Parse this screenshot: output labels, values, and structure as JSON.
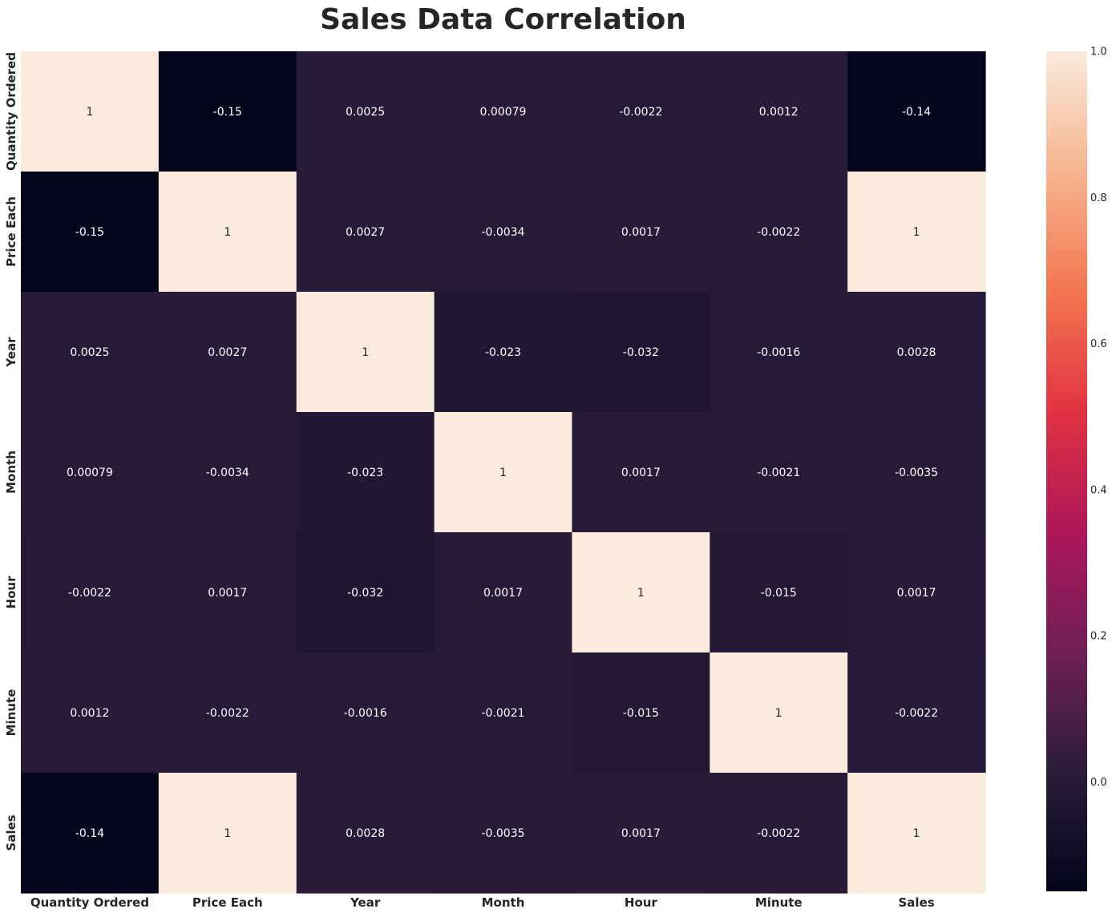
{
  "chart_data": {
    "type": "heatmap",
    "title": "Sales Data Correlation",
    "variables": [
      "Quantity Ordered",
      "Price Each",
      "Year",
      "Month",
      "Hour",
      "Minute",
      "Sales"
    ],
    "values": [
      [
        1,
        -0.15,
        0.0025,
        0.00079,
        -0.0022,
        0.0012,
        -0.14
      ],
      [
        -0.15,
        1,
        0.0027,
        -0.0034,
        0.0017,
        -0.0022,
        1
      ],
      [
        0.0025,
        0.0027,
        1,
        -0.023,
        -0.032,
        -0.0016,
        0.0028
      ],
      [
        0.00079,
        -0.0034,
        -0.023,
        1,
        0.0017,
        -0.0021,
        -0.0035
      ],
      [
        -0.0022,
        0.0017,
        -0.032,
        0.0017,
        1,
        -0.015,
        0.0017
      ],
      [
        0.0012,
        -0.0022,
        -0.0016,
        -0.0021,
        -0.015,
        1,
        -0.0022
      ],
      [
        -0.14,
        1,
        0.0028,
        -0.0035,
        0.0017,
        -0.0022,
        1
      ]
    ],
    "annotations": [
      [
        "1",
        "-0.15",
        "0.0025",
        "0.00079",
        "-0.0022",
        "0.0012",
        "-0.14"
      ],
      [
        "-0.15",
        "1",
        "0.0027",
        "-0.0034",
        "0.0017",
        "-0.0022",
        "1"
      ],
      [
        "0.0025",
        "0.0027",
        "1",
        "-0.023",
        "-0.032",
        "-0.0016",
        "0.0028"
      ],
      [
        "0.00079",
        "-0.0034",
        "-0.023",
        "1",
        "0.0017",
        "-0.0021",
        "-0.0035"
      ],
      [
        "-0.0022",
        "0.0017",
        "-0.032",
        "0.0017",
        "1",
        "-0.015",
        "0.0017"
      ],
      [
        "0.0012",
        "-0.0022",
        "-0.0016",
        "-0.0021",
        "-0.015",
        "1",
        "-0.0022"
      ],
      [
        "-0.14",
        "1",
        "0.0028",
        "-0.0035",
        "0.0017",
        "-0.0022",
        "1"
      ]
    ],
    "colorbar": {
      "vmin": -0.15,
      "vmax": 1.0,
      "ticks": [
        "0.0",
        "0.2",
        "0.4",
        "0.6",
        "0.8",
        "1.0"
      ],
      "tick_values": [
        0,
        0.2,
        0.4,
        0.6,
        0.8,
        1.0
      ]
    },
    "colormap": "rocket",
    "colormap_stops": [
      "#03051a",
      "#2b1c3b",
      "#701f57",
      "#ad1759",
      "#e13342",
      "#f37651",
      "#f6b48f",
      "#faebdd"
    ],
    "annotation_colors": {
      "on_dark": "#ffffff",
      "on_light": "#262626"
    },
    "xlabel": "",
    "ylabel": ""
  }
}
